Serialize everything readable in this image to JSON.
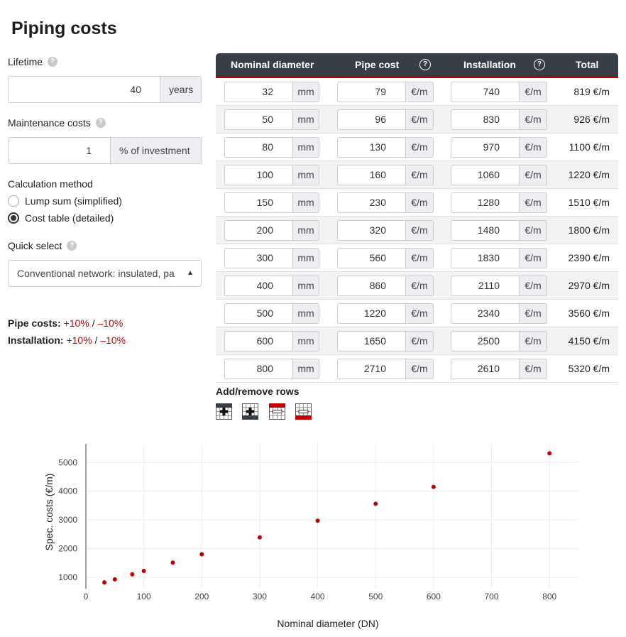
{
  "page": {
    "title": "Piping costs"
  },
  "lifetime": {
    "label": "Lifetime",
    "value": "40",
    "unit": "years"
  },
  "maintenance": {
    "label": "Maintenance costs",
    "value": "1",
    "unit": "% of investment"
  },
  "calc_method": {
    "label": "Calculation method",
    "options": [
      {
        "label": "Lump sum (simplified)",
        "checked": false
      },
      {
        "label": "Cost table (detailed)",
        "checked": true
      }
    ]
  },
  "quick_select": {
    "label": "Quick select",
    "value": "Conventional network: insulated, pa"
  },
  "sensitivity": {
    "pipe_label": "Pipe costs:",
    "install_label": "Installation:",
    "plus": "+10%",
    "sep": "/",
    "minus": "–10%"
  },
  "table": {
    "headers": {
      "diameter": "Nominal diameter",
      "pipe": "Pipe cost",
      "install": "Installation",
      "total": "Total"
    },
    "help_glyph": "?",
    "units": {
      "diameter": "mm",
      "cost": "€/m"
    },
    "rows": [
      {
        "dn": "32",
        "pipe": "79",
        "install": "740",
        "total": "819 €/m"
      },
      {
        "dn": "50",
        "pipe": "96",
        "install": "830",
        "total": "926 €/m"
      },
      {
        "dn": "80",
        "pipe": "130",
        "install": "970",
        "total": "1100 €/m"
      },
      {
        "dn": "100",
        "pipe": "160",
        "install": "1060",
        "total": "1220 €/m"
      },
      {
        "dn": "150",
        "pipe": "230",
        "install": "1280",
        "total": "1510 €/m"
      },
      {
        "dn": "200",
        "pipe": "320",
        "install": "1480",
        "total": "1800 €/m"
      },
      {
        "dn": "300",
        "pipe": "560",
        "install": "1830",
        "total": "2390 €/m"
      },
      {
        "dn": "400",
        "pipe": "860",
        "install": "2110",
        "total": "2970 €/m"
      },
      {
        "dn": "500",
        "pipe": "1220",
        "install": "2340",
        "total": "3560 €/m"
      },
      {
        "dn": "600",
        "pipe": "1650",
        "install": "2500",
        "total": "4150 €/m"
      },
      {
        "dn": "800",
        "pipe": "2710",
        "install": "2610",
        "total": "5320 €/m"
      }
    ],
    "add_remove_label": "Add/remove rows",
    "row_buttons": [
      "add-row-above-icon",
      "add-row-below-icon",
      "remove-row-above-icon",
      "remove-row-below-icon"
    ]
  },
  "colors": {
    "accent": "#c00000",
    "header_bg": "#383e45",
    "marker": "#c00000"
  },
  "chart_data": {
    "type": "scatter",
    "title": "",
    "xlabel": "Nominal diameter (DN)",
    "ylabel": "Spec. costs (€/m)",
    "xlim": [
      0,
      850
    ],
    "ylim": [
      600,
      5650
    ],
    "xticks": [
      0,
      100,
      200,
      300,
      400,
      500,
      600,
      700,
      800
    ],
    "yticks": [
      1000,
      2000,
      3000,
      4000,
      5000
    ],
    "grid": true,
    "x": [
      32,
      50,
      80,
      100,
      150,
      200,
      300,
      400,
      500,
      600,
      800
    ],
    "y": [
      819,
      926,
      1100,
      1220,
      1510,
      1800,
      2390,
      2970,
      3560,
      4150,
      5320
    ]
  }
}
